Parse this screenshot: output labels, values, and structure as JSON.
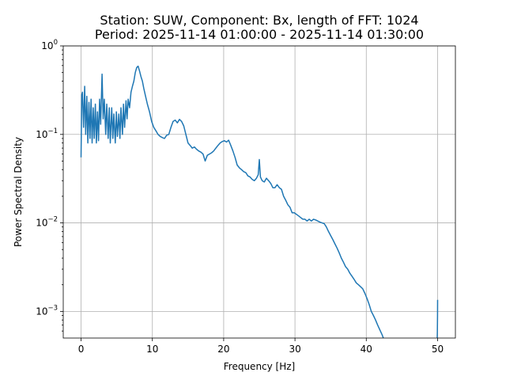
{
  "chart_data": {
    "type": "line",
    "title_line1": "Station: SUW, Component: Bx, length of FFT: 1024",
    "title_line2": "Period: 2025-11-14 01:00:00 - 2025-11-14 01:30:00",
    "xlabel": "Frequency [Hz]",
    "ylabel": "Power Spectral Density",
    "yscale": "log",
    "xlim": [
      -2.5,
      52.5
    ],
    "ylim": [
      0.0005,
      1
    ],
    "grid": true,
    "line_color": "#1f77b4",
    "xticks": [
      {
        "value": 0,
        "label": "0"
      },
      {
        "value": 10,
        "label": "10"
      },
      {
        "value": 20,
        "label": "20"
      },
      {
        "value": 30,
        "label": "30"
      },
      {
        "value": 40,
        "label": "40"
      },
      {
        "value": 50,
        "label": "50"
      }
    ],
    "yticks": [
      {
        "value": 0.001,
        "base": "10",
        "exp": "−3"
      },
      {
        "value": 0.01,
        "base": "10",
        "exp": "−2"
      },
      {
        "value": 0.1,
        "base": "10",
        "exp": "−1"
      },
      {
        "value": 1,
        "base": "10",
        "exp": "0"
      }
    ],
    "series": [
      {
        "x": [
          0,
          0.1,
          0.2,
          0.35,
          0.5,
          0.65,
          0.8,
          0.95,
          1.1,
          1.25,
          1.4,
          1.55,
          1.7,
          1.85,
          2.0,
          2.15,
          2.3,
          2.45,
          2.6,
          2.75,
          2.95,
          3.1,
          3.25,
          3.45,
          3.6,
          3.8,
          3.95,
          4.1,
          4.3,
          4.45,
          4.6,
          4.8,
          4.95,
          5.1,
          5.3,
          5.45,
          5.6,
          5.8,
          5.95,
          6.1,
          6.3,
          6.45,
          6.6,
          6.8,
          7.0,
          7.2,
          7.4,
          7.6,
          7.8,
          8.0,
          8.2,
          8.4,
          8.6,
          8.8,
          9.0,
          9.3,
          9.6,
          9.9,
          10.2,
          10.5,
          10.8,
          11.1,
          11.4,
          11.7,
          12.0,
          12.3,
          12.6,
          12.9,
          13.2,
          13.5,
          13.8,
          14.1,
          14.4,
          14.7,
          15.0,
          15.3,
          15.6,
          15.9,
          16.2,
          16.5,
          16.8,
          17.1,
          17.4,
          17.7,
          18.0,
          18.3,
          18.6,
          18.9,
          19.2,
          19.5,
          19.8,
          20.1,
          20.4,
          20.7,
          21.0,
          21.3,
          21.6,
          21.9,
          22.2,
          22.5,
          22.8,
          23.1,
          23.4,
          23.7,
          24.0,
          24.3,
          24.6,
          24.85,
          25.0,
          25.15,
          25.4,
          25.7,
          26.0,
          26.3,
          26.6,
          26.9,
          27.2,
          27.5,
          27.8,
          28.1,
          28.4,
          28.7,
          29.0,
          29.3,
          29.6,
          29.9,
          30.2,
          30.5,
          30.8,
          31.1,
          31.4,
          31.7,
          32.0,
          32.3,
          32.6,
          32.9,
          33.2,
          33.5,
          33.8,
          34.1,
          34.4,
          34.7,
          35.0,
          35.3,
          35.6,
          35.9,
          36.2,
          36.5,
          36.8,
          37.1,
          37.4,
          37.7,
          38.0,
          38.3,
          38.6,
          38.9,
          39.2,
          39.5,
          39.8,
          40.1,
          40.4,
          40.7,
          41.0,
          41.3,
          41.6,
          41.9,
          42.2,
          42.4
        ],
        "y": [
          0.055,
          0.28,
          0.3,
          0.12,
          0.35,
          0.1,
          0.27,
          0.08,
          0.23,
          0.09,
          0.25,
          0.08,
          0.2,
          0.09,
          0.22,
          0.08,
          0.18,
          0.085,
          0.25,
          0.13,
          0.48,
          0.15,
          0.25,
          0.1,
          0.22,
          0.09,
          0.2,
          0.08,
          0.2,
          0.09,
          0.17,
          0.08,
          0.18,
          0.095,
          0.17,
          0.09,
          0.2,
          0.1,
          0.22,
          0.12,
          0.24,
          0.15,
          0.25,
          0.2,
          0.3,
          0.35,
          0.4,
          0.5,
          0.57,
          0.59,
          0.52,
          0.45,
          0.4,
          0.33,
          0.28,
          0.22,
          0.18,
          0.14,
          0.12,
          0.11,
          0.1,
          0.095,
          0.092,
          0.09,
          0.098,
          0.1,
          0.12,
          0.14,
          0.145,
          0.135,
          0.148,
          0.14,
          0.125,
          0.1,
          0.08,
          0.075,
          0.07,
          0.072,
          0.068,
          0.065,
          0.063,
          0.06,
          0.05,
          0.058,
          0.06,
          0.062,
          0.065,
          0.07,
          0.075,
          0.08,
          0.083,
          0.085,
          0.082,
          0.086,
          0.075,
          0.065,
          0.055,
          0.045,
          0.042,
          0.04,
          0.038,
          0.037,
          0.034,
          0.033,
          0.031,
          0.03,
          0.032,
          0.035,
          0.052,
          0.033,
          0.03,
          0.029,
          0.032,
          0.03,
          0.028,
          0.025,
          0.025,
          0.027,
          0.025,
          0.024,
          0.02,
          0.018,
          0.016,
          0.015,
          0.013,
          0.013,
          0.0125,
          0.012,
          0.0115,
          0.011,
          0.011,
          0.0105,
          0.011,
          0.0105,
          0.011,
          0.0108,
          0.0105,
          0.0102,
          0.01,
          0.0098,
          0.009,
          0.008,
          0.0072,
          0.0065,
          0.0058,
          0.0052,
          0.0046,
          0.004,
          0.0036,
          0.0032,
          0.003,
          0.0027,
          0.0025,
          0.0023,
          0.0021,
          0.002,
          0.0019,
          0.0018,
          0.0016,
          0.0014,
          0.0012,
          0.001,
          0.0009,
          0.0008,
          0.0007,
          0.00062,
          0.00055,
          0.0005
        ]
      },
      {
        "x": [
          49.95,
          49.97,
          49.99,
          50.01
        ],
        "y": [
          0.0005,
          0.0006,
          0.0009,
          0.00135
        ]
      }
    ]
  }
}
